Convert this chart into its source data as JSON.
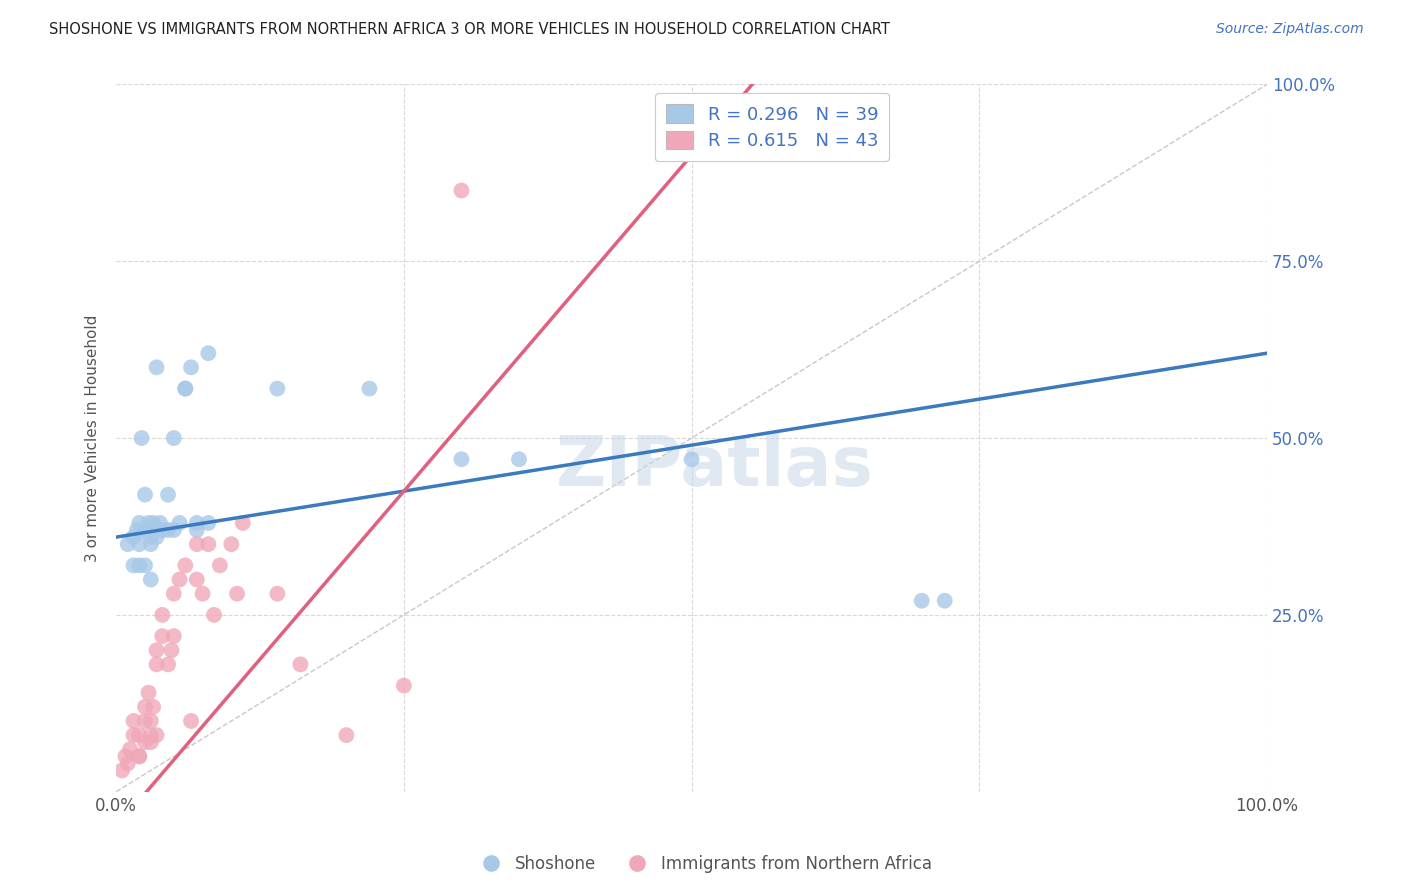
{
  "title": "SHOSHONE VS IMMIGRANTS FROM NORTHERN AFRICA 3 OR MORE VEHICLES IN HOUSEHOLD CORRELATION CHART",
  "source": "Source: ZipAtlas.com",
  "ylabel": "3 or more Vehicles in Household",
  "xlim": [
    0,
    100
  ],
  "ylim": [
    0,
    100
  ],
  "legend1_label": "R = 0.296   N = 39",
  "legend2_label": "R = 0.615   N = 43",
  "legend_bottom1": "Shoshone",
  "legend_bottom2": "Immigrants from Northern Africa",
  "blue_color": "#a8c8e8",
  "pink_color": "#f0a8b8",
  "blue_line_color": "#3a7abf",
  "pink_line_color": "#e06080",
  "diagonal_color": "#c8c8c8",
  "watermark": "ZIPatlas",
  "blue_intercept": 36.0,
  "blue_slope": 0.26,
  "pink_intercept": -5.0,
  "pink_slope": 1.9,
  "blue_points_x": [
    1.0,
    1.5,
    1.8,
    2.0,
    2.2,
    2.5,
    2.5,
    2.8,
    3.0,
    3.2,
    3.5,
    3.8,
    4.0,
    4.5,
    5.0,
    5.5,
    6.0,
    6.5,
    7.0,
    8.0,
    14.0,
    22.0,
    30.0,
    35.0,
    50.0,
    70.0,
    72.0,
    2.0,
    3.0,
    4.5,
    5.0,
    6.0,
    7.0,
    8.0,
    2.5,
    3.0,
    1.5,
    2.0,
    3.5
  ],
  "blue_points_y": [
    35,
    36,
    37,
    38,
    50,
    42,
    37,
    38,
    35,
    38,
    60,
    38,
    37,
    37,
    50,
    38,
    57,
    60,
    38,
    62,
    57,
    57,
    47,
    47,
    47,
    27,
    27,
    32,
    30,
    42,
    37,
    57,
    37,
    38,
    32,
    36,
    32,
    35,
    36
  ],
  "pink_points_x": [
    0.5,
    0.8,
    1.0,
    1.2,
    1.5,
    1.5,
    2.0,
    2.0,
    2.5,
    2.5,
    2.8,
    3.0,
    3.0,
    3.2,
    3.5,
    3.5,
    4.0,
    4.0,
    4.5,
    4.8,
    5.0,
    5.0,
    5.5,
    6.0,
    6.5,
    7.0,
    7.0,
    7.5,
    8.0,
    8.5,
    9.0,
    10.0,
    10.5,
    11.0,
    14.0,
    16.0,
    20.0,
    25.0,
    2.0,
    2.5,
    3.0,
    3.5,
    30.0
  ],
  "pink_points_y": [
    3,
    5,
    4,
    6,
    8,
    10,
    5,
    8,
    10,
    12,
    14,
    8,
    10,
    12,
    18,
    20,
    22,
    25,
    18,
    20,
    22,
    28,
    30,
    32,
    10,
    30,
    35,
    28,
    35,
    25,
    32,
    35,
    28,
    38,
    28,
    18,
    8,
    15,
    5,
    7,
    7,
    8,
    85
  ]
}
